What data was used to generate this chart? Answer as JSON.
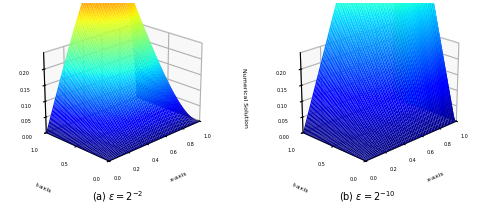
{
  "title_a": "(a) $\\varepsilon = 2^{-2}$",
  "title_b": "(b) $\\varepsilon = 2^{-10}$",
  "xlabel": "x-axis",
  "ylabel": "t-axis",
  "zlabel": "Numerical Solution",
  "zlim": [
    0,
    0.25
  ],
  "zticks": [
    0.0,
    0.05,
    0.1,
    0.15,
    0.2
  ],
  "xticks": [
    0.0,
    0.2,
    0.4,
    0.6,
    0.8,
    1.0
  ],
  "yticks": [
    0.0,
    0.5,
    1.0
  ],
  "eps_a": 0.25,
  "eps_b": 0.000976563,
  "N": 60,
  "figsize": [
    5.0,
    2.03
  ],
  "dpi": 100,
  "elev": 22,
  "azim": -135
}
